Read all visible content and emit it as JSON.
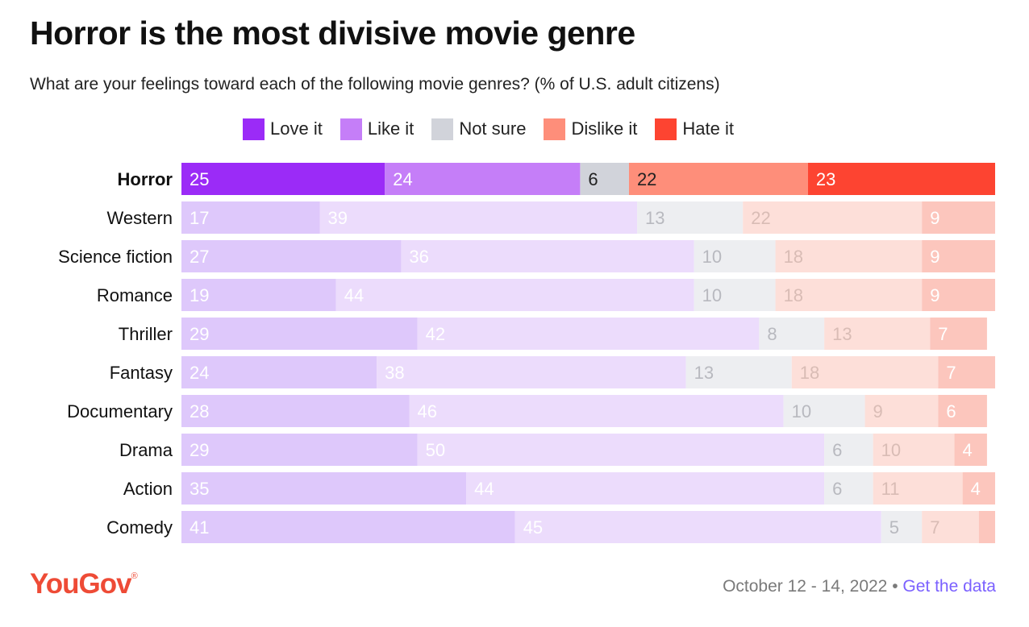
{
  "title": "Horror is the most divisive movie genre",
  "subtitle": "What are your feelings toward each of the following movie genres? (% of U.S. adult citizens)",
  "footer": {
    "logo": "YouGov",
    "logo_mark": "®",
    "date": "October 12 - 14, 2022",
    "separator": " • ",
    "link_label": "Get the data"
  },
  "colors": {
    "highlight": [
      "#9b2bf7",
      "#c57ef8",
      "#d1d3da",
      "#fe8e7a",
      "#fd4431"
    ],
    "faded": [
      "#dec8fb",
      "#ecdcfc",
      "#edeef1",
      "#fddfd9",
      "#fcc6bd"
    ],
    "highlight_text": [
      "#ffffff",
      "#ffffff",
      "#222222",
      "#222222",
      "#ffffff"
    ],
    "faded_text": [
      "#ffffff",
      "#ffffff",
      "#b8b9bf",
      "#d9bcb5",
      "#ffffff"
    ]
  },
  "chart_data": {
    "type": "bar",
    "orientation": "horizontal",
    "stacked": true,
    "highlighted_category": "Horror",
    "categories": [
      "Horror",
      "Western",
      "Science fiction",
      "Romance",
      "Thriller",
      "Fantasy",
      "Documentary",
      "Drama",
      "Action",
      "Comedy"
    ],
    "series": [
      {
        "name": "Love it",
        "values": [
          25,
          17,
          27,
          19,
          29,
          24,
          28,
          29,
          35,
          41
        ]
      },
      {
        "name": "Like it",
        "values": [
          24,
          39,
          36,
          44,
          42,
          38,
          46,
          50,
          44,
          45
        ]
      },
      {
        "name": "Not sure",
        "values": [
          6,
          13,
          10,
          10,
          8,
          13,
          10,
          6,
          6,
          5
        ]
      },
      {
        "name": "Dislike it",
        "values": [
          22,
          22,
          18,
          18,
          13,
          18,
          9,
          10,
          11,
          7
        ]
      },
      {
        "name": "Hate it",
        "values": [
          23,
          9,
          9,
          9,
          7,
          7,
          6,
          4,
          4,
          2
        ]
      }
    ],
    "value_labels": [
      [
        "25",
        "24",
        "6",
        "22",
        "23"
      ],
      [
        "17",
        "39",
        "13",
        "22",
        "9"
      ],
      [
        "27",
        "36",
        "10",
        "18",
        "9"
      ],
      [
        "19",
        "44",
        "10",
        "18",
        "9"
      ],
      [
        "29",
        "42",
        "8",
        "13",
        "7"
      ],
      [
        "24",
        "38",
        "13",
        "18",
        "7"
      ],
      [
        "28",
        "46",
        "10",
        "9",
        "6"
      ],
      [
        "29",
        "50",
        "6",
        "10",
        "4"
      ],
      [
        "35",
        "44",
        "6",
        "11",
        "4"
      ],
      [
        "41",
        "45",
        "5",
        "7",
        ""
      ]
    ],
    "legend_position": "top",
    "grid": false
  }
}
